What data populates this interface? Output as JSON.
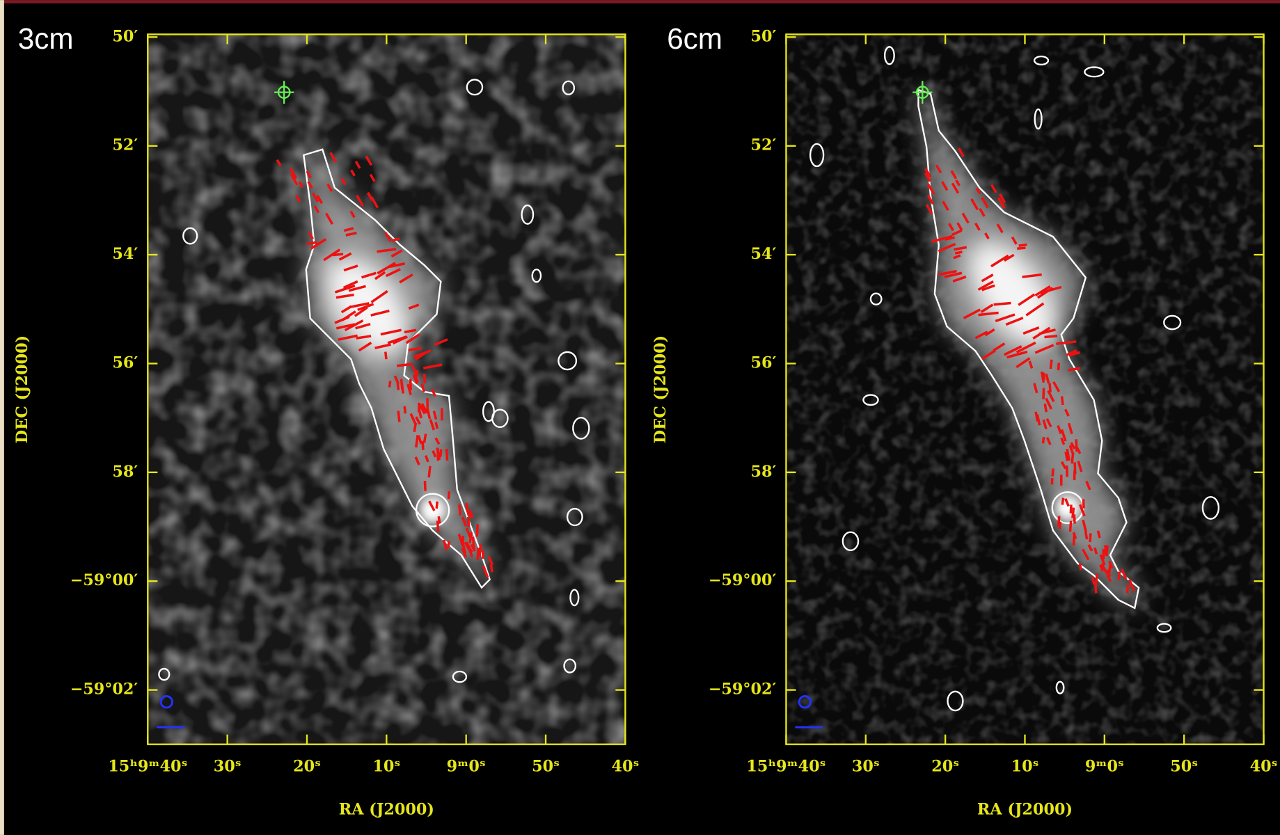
{
  "chart_data": [
    {
      "type": "image",
      "title": "3cm",
      "xlabel": "RA (J2000)",
      "ylabel": "DEC (J2000)",
      "xlim": [
        54580,
        54520
      ],
      "ylim": [
        -3543,
        -3529.95
      ],
      "xticks": [
        {
          "value": 54580,
          "label": "15ʰ9ᵐ40ˢ"
        },
        {
          "value": 54570,
          "label": "30ˢ"
        },
        {
          "value": 54560,
          "label": "20ˢ"
        },
        {
          "value": 54550,
          "label": "10ˢ"
        },
        {
          "value": 54540,
          "label": "9ᵐ0ˢ"
        },
        {
          "value": 54530,
          "label": "50ˢ"
        },
        {
          "value": 54520,
          "label": "40ˢ"
        }
      ],
      "yticks": [
        {
          "value": -3530,
          "label": "50′"
        },
        {
          "value": -3532,
          "label": "52′"
        },
        {
          "value": -3534,
          "label": "54′"
        },
        {
          "value": -3536,
          "label": "56′"
        },
        {
          "value": -3538,
          "label": "58′"
        },
        {
          "value": -3540,
          "label": "−59°00′"
        },
        {
          "value": -3542,
          "label": "−59°02′"
        }
      ]
    },
    {
      "type": "image",
      "title": "6cm",
      "xlabel": "RA (J2000)",
      "ylabel": "DEC (J2000)",
      "xlim": [
        54580,
        54520
      ],
      "ylim": [
        -3543,
        -3529.95
      ],
      "xticks": [
        {
          "value": 54580,
          "label": "15ʰ9ᵐ40ˢ"
        },
        {
          "value": 54570,
          "label": "30ˢ"
        },
        {
          "value": 54560,
          "label": "20ˢ"
        },
        {
          "value": 54550,
          "label": "10ˢ"
        },
        {
          "value": 54540,
          "label": "9ᵐ0ˢ"
        },
        {
          "value": 54530,
          "label": "50ˢ"
        },
        {
          "value": 54520,
          "label": "40ˢ"
        }
      ],
      "yticks": [
        {
          "value": -3530,
          "label": "50′"
        },
        {
          "value": -3532,
          "label": "52′"
        },
        {
          "value": -3534,
          "label": "54′"
        },
        {
          "value": -3536,
          "label": "56′"
        },
        {
          "value": -3538,
          "label": "58′"
        },
        {
          "value": -3540,
          "label": "−59°00′"
        },
        {
          "value": -3542,
          "label": "−59°02′"
        }
      ]
    }
  ]
}
